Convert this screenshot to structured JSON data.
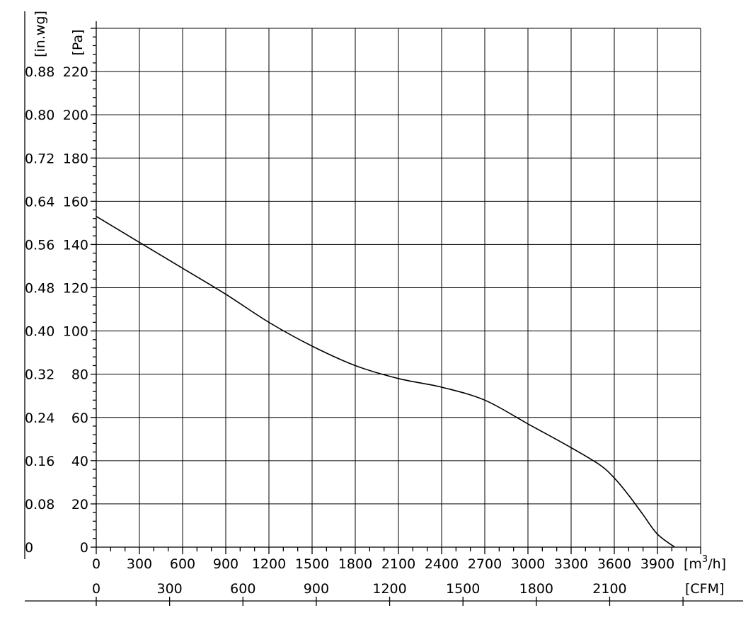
{
  "chart_data": {
    "type": "line",
    "title": "",
    "x_axis": {
      "label": "[m³/h]",
      "label_main": "[m",
      "label_sup": "3",
      "label_end": "/h]",
      "range": [
        0,
        4200
      ],
      "ticks": [
        0,
        300,
        600,
        900,
        1200,
        1500,
        1800,
        2100,
        2400,
        2700,
        3000,
        3300,
        3600,
        3900
      ]
    },
    "x_axis_secondary": {
      "label": "[CFM]",
      "ticks": [
        0,
        300,
        600,
        900,
        1200,
        1500,
        1800,
        2100
      ]
    },
    "y_axis": {
      "label": "[Pa]",
      "range": [
        0,
        240
      ],
      "ticks": [
        0,
        20,
        40,
        60,
        80,
        100,
        120,
        140,
        160,
        180,
        200,
        220
      ]
    },
    "y_axis_secondary": {
      "label": "[in.wg]",
      "ticks": [
        "0",
        "0.08",
        "0.16",
        "0.24",
        "0.32",
        "0.40",
        "0.48",
        "0.56",
        "0.64",
        "0.72",
        "0.80",
        "0.88"
      ]
    },
    "grid": true,
    "series": [
      {
        "x": [
          0,
          300,
          600,
          900,
          1200,
          1500,
          1800,
          2100,
          2400,
          2700,
          3000,
          3300,
          3500,
          3600,
          3700,
          3800,
          3900,
          4020
        ],
        "y": [
          153,
          141,
          129,
          117,
          104,
          93,
          84,
          78,
          74,
          68,
          57,
          46,
          38,
          32,
          24,
          15,
          6,
          0
        ]
      }
    ]
  }
}
